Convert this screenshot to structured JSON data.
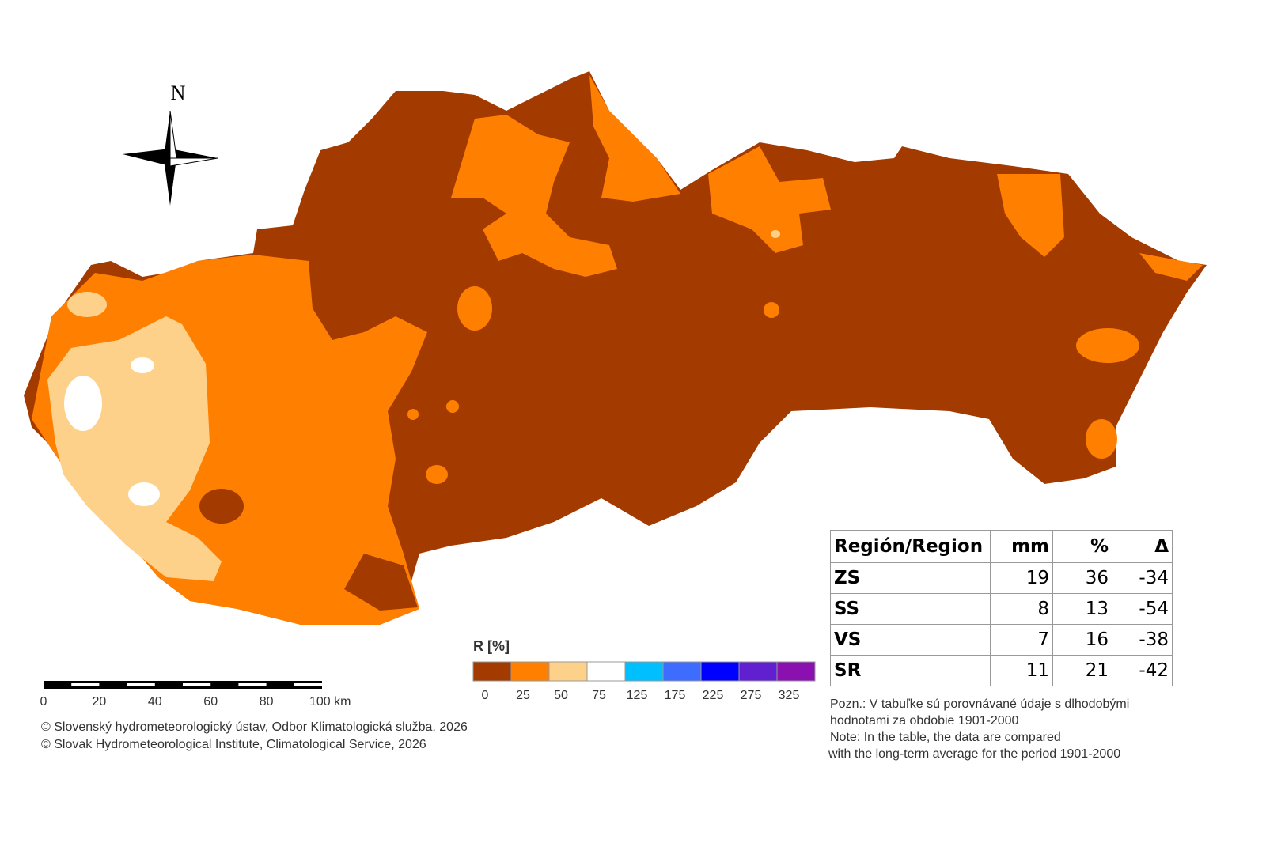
{
  "compass": {
    "label": "N"
  },
  "scale_bar": {
    "ticks": [
      "0",
      "20",
      "40",
      "60",
      "80",
      "100 km"
    ]
  },
  "legend": {
    "title": "R [%]",
    "colors": [
      "#a33a00",
      "#ff8000",
      "#fdd18a",
      "#ffffff",
      "#00bfff",
      "#3d6cff",
      "#0000ff",
      "#6020d0",
      "#8a10b0"
    ],
    "labels": [
      "0",
      "25",
      "50",
      "75",
      "125",
      "175",
      "225",
      "275",
      "325"
    ]
  },
  "table": {
    "header": [
      "Región/Region",
      "mm",
      "%",
      "Δ"
    ],
    "rows": [
      [
        "ZS",
        19,
        36,
        -34
      ],
      [
        "SS",
        8,
        13,
        -54
      ],
      [
        "VS",
        7,
        16,
        -38
      ],
      [
        "SR",
        11,
        21,
        -42
      ]
    ]
  },
  "note": [
    "Pozn.: V tabuľke sú porovnávané údaje s dlhodobými",
    "hodnotami za obdobie 1901-2000",
    "Note: In the table, the data are compared",
    "with the long-term average for the period 1901-2000"
  ],
  "credits": [
    "© Slovenský hydrometeorologický ústav, Odbor Klimatologická služba, 2026",
    "© Slovak Hydrometeorological Institute, Climatological Service, 2026"
  ]
}
